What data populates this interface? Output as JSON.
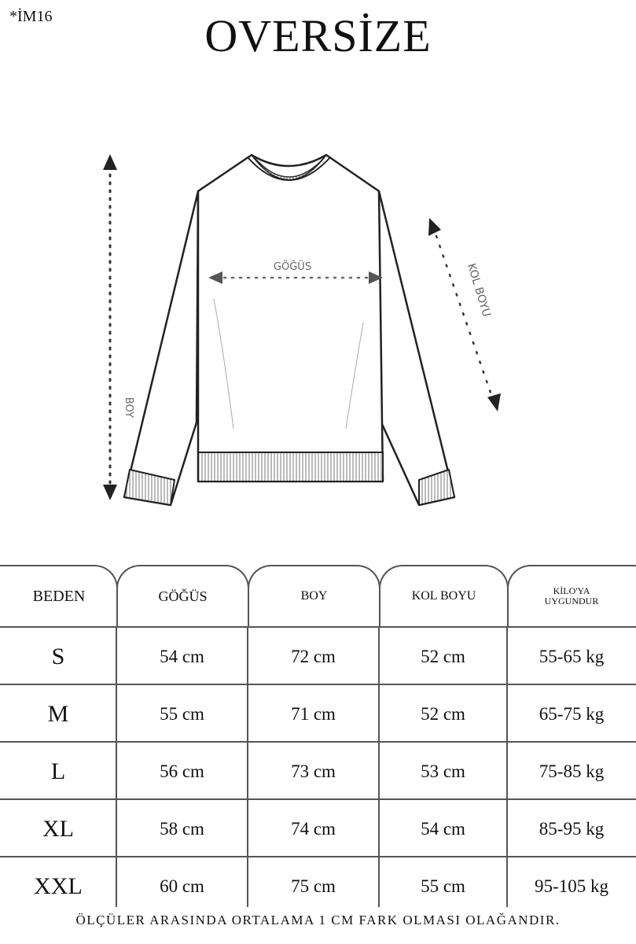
{
  "product_code": "*İM16",
  "title": "OVERSİZE",
  "diagram": {
    "chest_label": "GÖĞÜS",
    "length_label": "BOY",
    "sleeve_label": "KOL BOYU"
  },
  "table": {
    "headers": [
      "BEDEN",
      "GÖĞÜS",
      "BOY",
      "KOL BOYU",
      "KİLO'YA UYGUNDUR"
    ],
    "rows": [
      [
        "S",
        "54 cm",
        "72 cm",
        "52  cm",
        "55-65 kg"
      ],
      [
        "M",
        "55 cm",
        "71 cm",
        "52 cm",
        "65-75 kg"
      ],
      [
        "L",
        "56 cm",
        "73 cm",
        "53 cm",
        "75-85 kg"
      ],
      [
        "XL",
        "58 cm",
        "74 cm",
        "54 cm",
        "85-95 kg"
      ],
      [
        "XXL",
        "60 cm",
        "75 cm",
        "55 cm",
        "95-105 kg"
      ]
    ]
  },
  "footer_note": "ÖLÇÜLER ARASINDA ORTALAMA 1 CM FARK OLMASI OLAĞANDIR."
}
